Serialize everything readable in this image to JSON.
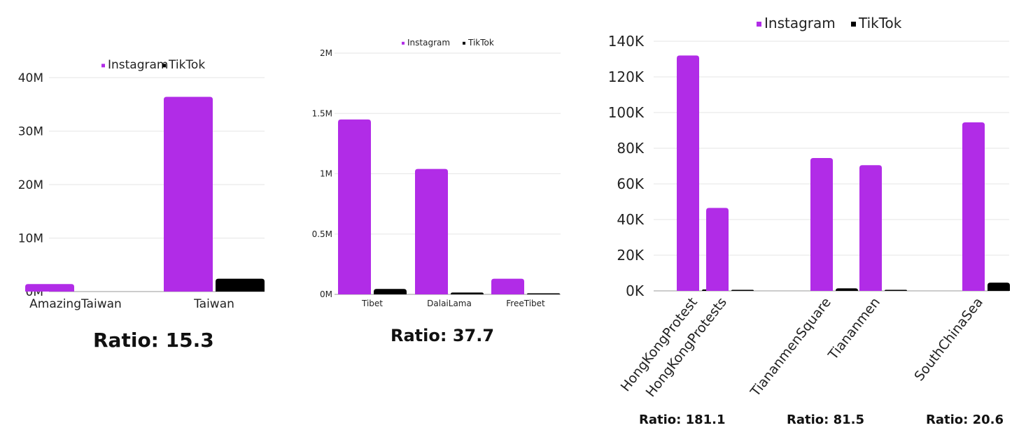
{
  "colors": {
    "instagram": "#b12ce7",
    "tiktok": "#000000",
    "grid": "#e6e6e6",
    "text": "#222222"
  },
  "chart_data": [
    {
      "type": "bar",
      "legend": "top-center",
      "categories": [
        "AmazingTaiwan",
        "Taiwan"
      ],
      "series": [
        {
          "name": "Instagram",
          "values": [
            1400000,
            36400000
          ]
        },
        {
          "name": "TikTok",
          "values": [
            0,
            2400000
          ]
        }
      ],
      "ylim": [
        0,
        40000000
      ],
      "yticks": [
        "0M",
        "10M",
        "20M",
        "30M",
        "40M"
      ],
      "ratio": "Ratio: 15.3"
    },
    {
      "type": "bar",
      "legend": "top-center",
      "categories": [
        "Tibet",
        "DalaiLama",
        "FreeTibet"
      ],
      "series": [
        {
          "name": "Instagram",
          "values": [
            1450000,
            1040000,
            130000
          ]
        },
        {
          "name": "TikTok",
          "values": [
            45000,
            15000,
            3000
          ]
        }
      ],
      "ylim": [
        0,
        2000000
      ],
      "yticks": [
        "0M",
        "0.5M",
        "1M",
        "1.5M",
        "2M"
      ],
      "ratio": "Ratio: 37.7"
    },
    {
      "type": "bar",
      "legend": "top-center",
      "categories": [
        "HongKongProtest",
        "HongKongProtests",
        "TiananmenSquare",
        "Tiananmen",
        "SouthChinaSea"
      ],
      "series": [
        {
          "name": "Instagram",
          "values": [
            132000,
            46500,
            74500,
            70500,
            94500
          ]
        },
        {
          "name": "TikTok",
          "values": [
            800,
            300,
            1400,
            600,
            4600
          ]
        }
      ],
      "ylim": [
        0,
        140000
      ],
      "yticks": [
        "0K",
        "20K",
        "40K",
        "60K",
        "80K",
        "100K",
        "120K",
        "140K"
      ],
      "ratios": [
        "Ratio: 181.1",
        "Ratio: 81.5",
        "Ratio: 20.6"
      ]
    }
  ]
}
